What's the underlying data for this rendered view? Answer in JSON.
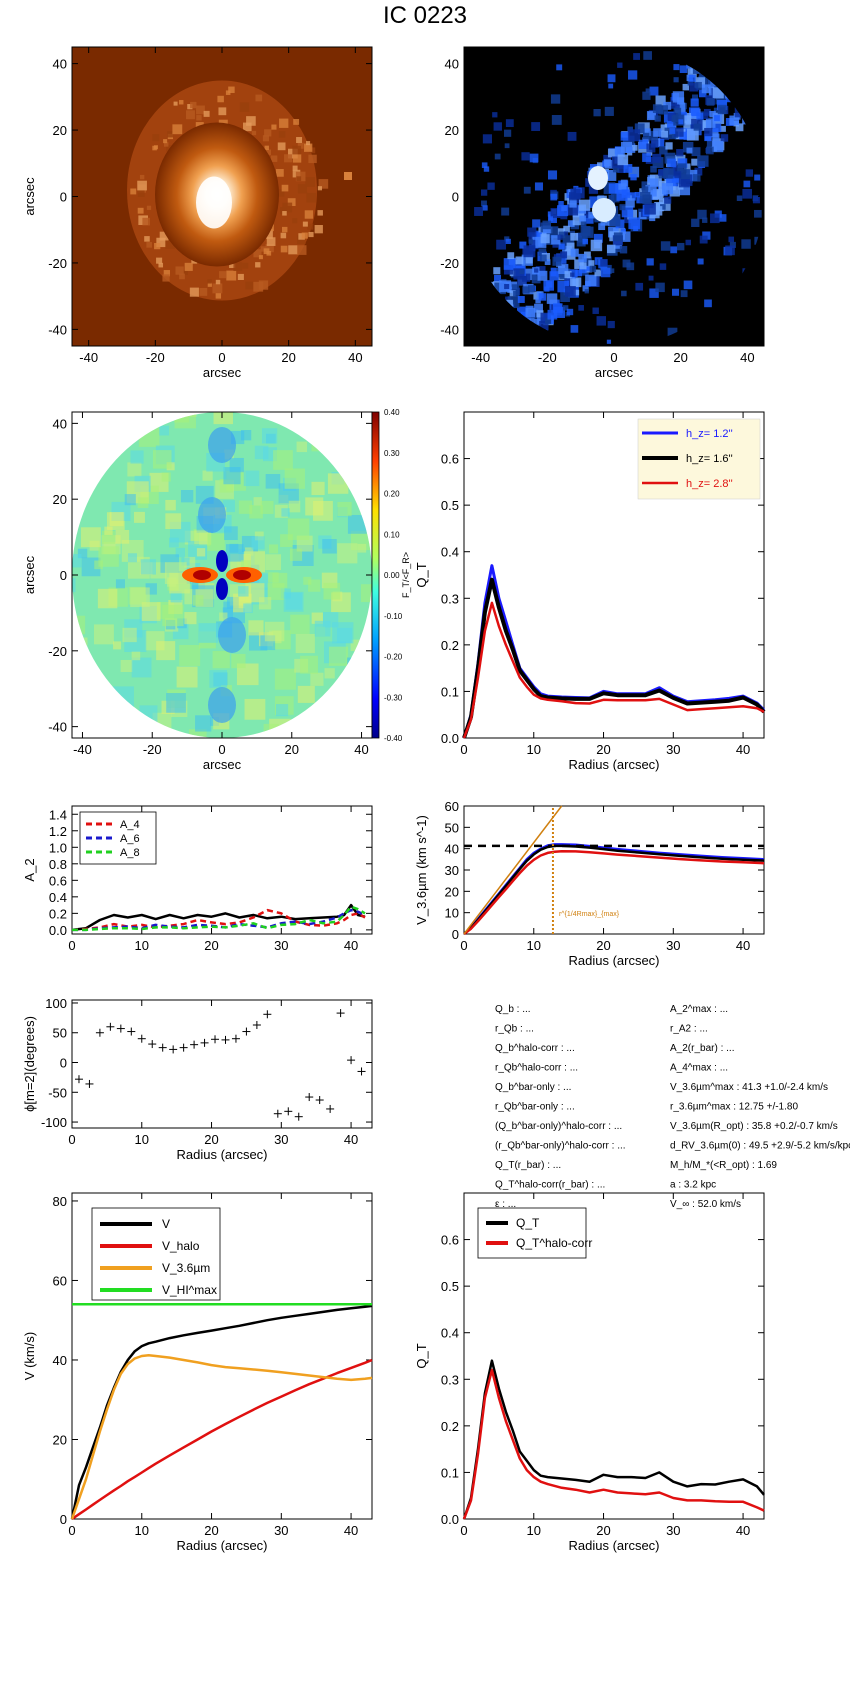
{
  "title": "IC 0223",
  "chart_data": [
    {
      "id": "image-orange",
      "type": "heatmap",
      "xlabel": "arcsec",
      "ylabel": "arcsec",
      "xlim": [
        -45,
        45
      ],
      "ylim": [
        -45,
        45
      ],
      "xticks": [
        "-40",
        "-20",
        "0",
        "20",
        "40"
      ],
      "yticks": [
        "-40",
        "-20",
        "0",
        "20",
        "40"
      ],
      "colormap": [
        "#5a1f00",
        "#ffffff"
      ]
    },
    {
      "id": "image-blue",
      "type": "heatmap",
      "xlabel": "arcsec",
      "ylabel": "",
      "xlim": [
        -45,
        45
      ],
      "ylim": [
        -45,
        45
      ],
      "xticks": [
        "-40",
        "-20",
        "0",
        "20",
        "40"
      ],
      "yticks": [
        "-40",
        "-20",
        "0",
        "20",
        "40"
      ],
      "colormap": [
        "#000000",
        "#1a5cff",
        "#d8ecff"
      ]
    },
    {
      "id": "force-ratio-map",
      "type": "heatmap",
      "xlabel": "arcsec",
      "ylabel": "arcsec",
      "xlim": [
        -43,
        43
      ],
      "ylim": [
        -43,
        43
      ],
      "xticks": [
        "-40",
        "-20",
        "0",
        "20",
        "40"
      ],
      "yticks": [
        "-40",
        "-20",
        "0",
        "20",
        "40"
      ],
      "colorbar_label": "F_T/<F_R>",
      "colorbar_ticks": [
        "0.40",
        "0.30",
        "0.20",
        "0.10",
        "0.00",
        "-0.10",
        "-0.20",
        "-0.30",
        "-0.40"
      ],
      "colorbar_range": [
        -0.4,
        0.4
      ]
    },
    {
      "id": "qt-hz",
      "type": "line",
      "xlabel": "Radius (arcsec)",
      "ylabel": "Q_T",
      "xlim": [
        0,
        43
      ],
      "ylim": [
        0,
        0.7
      ],
      "xticks": [
        "0",
        "10",
        "20",
        "30",
        "40"
      ],
      "yticks": [
        "0.0",
        "0.1",
        "0.2",
        "0.3",
        "0.4",
        "0.5",
        "0.6"
      ],
      "legend_position": "top-right",
      "x": [
        0,
        1,
        2,
        3,
        4,
        5,
        6,
        7,
        8,
        9,
        10,
        11,
        12,
        14,
        16,
        18,
        20,
        22,
        24,
        26,
        28,
        30,
        32,
        34,
        36,
        38,
        40,
        42,
        43
      ],
      "series": [
        {
          "name": "h_z=  1.2''",
          "color": "#1a1aff",
          "width": 3,
          "values": [
            0,
            0.05,
            0.16,
            0.29,
            0.37,
            0.3,
            0.25,
            0.2,
            0.15,
            0.13,
            0.11,
            0.095,
            0.09,
            0.088,
            0.087,
            0.086,
            0.1,
            0.095,
            0.095,
            0.095,
            0.108,
            0.09,
            0.078,
            0.08,
            0.082,
            0.085,
            0.09,
            0.075,
            0.06
          ]
        },
        {
          "name": "h_z=  1.6''",
          "color": "#000000",
          "width": 4,
          "values": [
            0,
            0.045,
            0.15,
            0.27,
            0.34,
            0.28,
            0.23,
            0.19,
            0.145,
            0.125,
            0.105,
            0.09,
            0.087,
            0.085,
            0.084,
            0.084,
            0.096,
            0.092,
            0.092,
            0.092,
            0.102,
            0.086,
            0.074,
            0.076,
            0.078,
            0.08,
            0.087,
            0.072,
            0.056
          ]
        },
        {
          "name": "h_z=  2.8''",
          "color": "#e01010",
          "width": 2.5,
          "values": [
            0,
            0.04,
            0.13,
            0.23,
            0.29,
            0.24,
            0.2,
            0.165,
            0.13,
            0.11,
            0.093,
            0.085,
            0.082,
            0.079,
            0.075,
            0.074,
            0.082,
            0.081,
            0.081,
            0.081,
            0.084,
            0.072,
            0.06,
            0.062,
            0.064,
            0.066,
            0.068,
            0.064,
            0.056
          ]
        }
      ]
    },
    {
      "id": "fourier-amplitudes",
      "type": "line",
      "xlabel": "",
      "ylabel": "A_2",
      "xlim": [
        0,
        43
      ],
      "ylim": [
        -0.05,
        1.5
      ],
      "xticks": [
        "0",
        "10",
        "20",
        "30",
        "40"
      ],
      "yticks": [
        "0.0",
        "0.2",
        "0.4",
        "0.6",
        "0.8",
        "1.0",
        "1.2",
        "1.4"
      ],
      "legend_position": "top-left",
      "x": [
        0,
        2,
        4,
        6,
        8,
        10,
        12,
        14,
        16,
        18,
        20,
        22,
        24,
        26,
        28,
        30,
        32,
        34,
        36,
        38,
        39,
        40,
        41,
        42
      ],
      "series": [
        {
          "name": "A_2",
          "color": "#000000",
          "dash": "",
          "values": [
            0,
            0.02,
            0.12,
            0.18,
            0.15,
            0.18,
            0.13,
            0.18,
            0.14,
            0.18,
            0.16,
            0.2,
            0.15,
            0.18,
            0.14,
            0.16,
            0.13,
            0.14,
            0.15,
            0.16,
            0.18,
            0.3,
            0.18,
            0.16
          ]
        },
        {
          "name": "A_4",
          "color": "#e01010",
          "dash": "6,4",
          "values": [
            0,
            0.01,
            0.03,
            0.07,
            0.04,
            0.06,
            0.03,
            0.05,
            0.07,
            0.12,
            0.09,
            0.07,
            0.09,
            0.15,
            0.24,
            0.2,
            0.1,
            0.06,
            0.05,
            0.08,
            0.12,
            0.18,
            0.2,
            0.15
          ]
        },
        {
          "name": "A_6",
          "color": "#1a1acc",
          "dash": "6,4",
          "values": [
            0,
            0.0,
            0.02,
            0.03,
            0.04,
            0.02,
            0.06,
            0.04,
            0.03,
            0.06,
            0.05,
            0.03,
            0.07,
            0.05,
            0.03,
            0.08,
            0.1,
            0.07,
            0.1,
            0.15,
            0.2,
            0.24,
            0.22,
            0.18
          ]
        },
        {
          "name": "A_8",
          "color": "#20d020",
          "dash": "6,4",
          "values": [
            0,
            0.0,
            0.01,
            0.02,
            0.02,
            0.01,
            0.03,
            0.03,
            0.02,
            0.03,
            0.04,
            0.03,
            0.05,
            0.08,
            0.02,
            0.06,
            0.07,
            0.12,
            0.08,
            0.1,
            0.18,
            0.28,
            0.25,
            0.2
          ]
        }
      ]
    },
    {
      "id": "rotation-curve-3p6",
      "type": "line",
      "xlabel": "Radius (arcsec)",
      "ylabel": "V_3.6µm (km s^-1)",
      "xlim": [
        0,
        43
      ],
      "ylim": [
        0,
        60
      ],
      "xticks": [
        "0",
        "10",
        "20",
        "30",
        "40"
      ],
      "yticks": [
        "0",
        "10",
        "20",
        "30",
        "40",
        "50",
        "60"
      ],
      "vmax": 41.3,
      "r_vmax": 12.75,
      "r_annotation": "r^{1/4Rmax}_{max}",
      "x": [
        0,
        1,
        2,
        3,
        4,
        5,
        6,
        7,
        8,
        9,
        10,
        11,
        12,
        13,
        14,
        16,
        18,
        20,
        22,
        25,
        28,
        31,
        34,
        37,
        40,
        43
      ],
      "series": [
        {
          "name": "",
          "color": "#1a1aff",
          "values": [
            0,
            3,
            7,
            11,
            15,
            19,
            23,
            27,
            31,
            35,
            38,
            40,
            41.5,
            42,
            42,
            41.8,
            41.2,
            40.5,
            39.8,
            38.9,
            38,
            37.3,
            36.6,
            36,
            35.5,
            35
          ]
        },
        {
          "name": "",
          "color": "#000000",
          "values": [
            0,
            2.8,
            6.6,
            10.5,
            14.5,
            18.5,
            22.5,
            26.5,
            30.5,
            34.3,
            37.3,
            39.5,
            40.8,
            41.3,
            41.3,
            41,
            40.5,
            39.8,
            39,
            38.2,
            37.4,
            36.6,
            35.9,
            35.3,
            34.8,
            34.4
          ]
        },
        {
          "name": "",
          "color": "#e01010",
          "values": [
            0,
            2.5,
            6,
            9.7,
            13.5,
            17.3,
            21,
            24.8,
            28.6,
            32,
            34.8,
            36.8,
            38,
            38.6,
            38.8,
            38.7,
            38.3,
            37.8,
            37.2,
            36.5,
            35.8,
            35.1,
            34.5,
            34,
            33.6,
            33.2
          ]
        }
      ]
    },
    {
      "id": "phase-m2",
      "type": "scatter",
      "xlabel": "Radius (arcsec)",
      "ylabel": "ϕ[m=2](degrees)",
      "xlim": [
        0,
        43
      ],
      "ylim": [
        -110,
        105
      ],
      "xticks": [
        "0",
        "10",
        "20",
        "30",
        "40"
      ],
      "yticks": [
        "-100",
        "-50",
        "0",
        "50",
        "100"
      ],
      "x": [
        1,
        2.5,
        4,
        5.5,
        7,
        8.5,
        10,
        11.5,
        13,
        14.5,
        16,
        17.5,
        19,
        20.5,
        22,
        23.5,
        25,
        26.5,
        28,
        29.5,
        31,
        32.5,
        34,
        35.5,
        37,
        38.5,
        40,
        41.5
      ],
      "y": [
        -28,
        -36,
        50,
        60,
        57,
        52,
        40,
        31,
        25,
        22,
        25,
        30,
        33,
        39,
        38,
        40,
        52,
        63,
        81,
        -86,
        -82,
        -91,
        -58,
        -63,
        -78,
        83,
        4,
        -15
      ]
    },
    {
      "id": "rotation-decomposition",
      "type": "line",
      "xlabel": "Radius (arcsec)",
      "ylabel": "V (km/s)",
      "xlim": [
        0,
        43
      ],
      "ylim": [
        0,
        82
      ],
      "xticks": [
        "0",
        "10",
        "20",
        "30",
        "40"
      ],
      "yticks": [
        "0",
        "20",
        "40",
        "60",
        "80"
      ],
      "legend_position": "top-left",
      "x": [
        0,
        1,
        2,
        3,
        4,
        5,
        6,
        7,
        8,
        9,
        10,
        11,
        12,
        14,
        16,
        18,
        20,
        22,
        24,
        26,
        28,
        30,
        32,
        34,
        36,
        38,
        40,
        42,
        43
      ],
      "series": [
        {
          "name": "V",
          "color": "#000000",
          "values": [
            0,
            8.5,
            13,
            18,
            23,
            28.5,
            33,
            37,
            40,
            42.2,
            43.5,
            44.2,
            44.6,
            45.5,
            46.2,
            46.8,
            47.4,
            48,
            48.6,
            49.3,
            50,
            50.6,
            51.1,
            51.6,
            52.1,
            52.6,
            53,
            53.4,
            53.6
          ]
        },
        {
          "name": "V_halo",
          "color": "#e01010",
          "values": [
            0,
            1.2,
            2.4,
            3.6,
            4.8,
            6,
            7.2,
            8.3,
            9.5,
            10.6,
            11.7,
            12.8,
            13.9,
            16,
            18,
            20,
            22,
            23.9,
            25.7,
            27.5,
            29.2,
            30.8,
            32.4,
            33.9,
            35.3,
            36.7,
            38,
            39.3,
            40
          ]
        },
        {
          "name": "V_3.6µm",
          "color": "#f0a020",
          "values": [
            0,
            5,
            10,
            16,
            22,
            27.5,
            32.5,
            36.5,
            39,
            40.4,
            41,
            41.2,
            41,
            40.6,
            40,
            39.4,
            38.7,
            38.2,
            37.9,
            37.6,
            37.3,
            36.9,
            36.5,
            36.1,
            35.7,
            35.3,
            35,
            35.3,
            35.5
          ]
        },
        {
          "name": "V_HI^max",
          "color": "#22dd22",
          "values": [
            54,
            54,
            54,
            54,
            54,
            54,
            54,
            54,
            54,
            54,
            54,
            54,
            54,
            54,
            54,
            54,
            54,
            54,
            54,
            54,
            54,
            54,
            54,
            54,
            54,
            54,
            54,
            54,
            54
          ]
        }
      ]
    },
    {
      "id": "qt-halo-corr",
      "type": "line",
      "xlabel": "Radius (arcsec)",
      "ylabel": "Q_T",
      "xlim": [
        0,
        43
      ],
      "ylim": [
        0,
        0.7
      ],
      "xticks": [
        "0",
        "10",
        "20",
        "30",
        "40"
      ],
      "yticks": [
        "0.0",
        "0.1",
        "0.2",
        "0.3",
        "0.4",
        "0.5",
        "0.6"
      ],
      "legend_position": "top-left",
      "x": [
        0,
        1,
        2,
        3,
        4,
        5,
        6,
        7,
        8,
        9,
        10,
        11,
        12,
        14,
        16,
        18,
        20,
        22,
        24,
        26,
        28,
        30,
        32,
        34,
        36,
        38,
        40,
        42,
        43
      ],
      "series": [
        {
          "name": "Q_T",
          "color": "#000000",
          "values": [
            0,
            0.045,
            0.15,
            0.27,
            0.34,
            0.28,
            0.23,
            0.19,
            0.145,
            0.125,
            0.105,
            0.093,
            0.09,
            0.087,
            0.084,
            0.08,
            0.095,
            0.09,
            0.09,
            0.088,
            0.1,
            0.08,
            0.07,
            0.075,
            0.074,
            0.08,
            0.085,
            0.07,
            0.052
          ]
        },
        {
          "name": "Q_T^halo-corr",
          "color": "#e01010",
          "values": [
            0,
            0.04,
            0.14,
            0.26,
            0.32,
            0.26,
            0.21,
            0.17,
            0.13,
            0.105,
            0.09,
            0.08,
            0.075,
            0.067,
            0.063,
            0.057,
            0.063,
            0.057,
            0.055,
            0.053,
            0.057,
            0.045,
            0.04,
            0.04,
            0.038,
            0.037,
            0.037,
            0.025,
            0.018
          ]
        }
      ]
    }
  ],
  "stats": {
    "left": [
      {
        "label": "Q_b",
        "sup": "",
        "sub": "b",
        "value": ": ..."
      },
      {
        "label": "r_Qb",
        "sup": "",
        "sub": "Qb",
        "value": ": ..."
      },
      {
        "label": "Q_b^halo-corr",
        "sup": "halo-corr",
        "sub": "b",
        "value": ": ..."
      },
      {
        "label": "r_Qb^halo-corr",
        "sup": "halo-corr",
        "sub": "Qb",
        "value": ": ..."
      },
      {
        "label": "Q_b^bar-only",
        "sup": "bar-only",
        "sub": "b",
        "value": ": ..."
      },
      {
        "label": "r_Qb^bar-only",
        "sup": "bar-only",
        "sub": "Qb",
        "value": ": ..."
      },
      {
        "label": "(Q_b^bar-only)^halo-corr",
        "sup": "",
        "sub": "",
        "value": ": ..."
      },
      {
        "label": "(r_Qb^bar-only)^halo-corr",
        "sup": "",
        "sub": "",
        "value": ": ..."
      },
      {
        "label": "Q_T(r_bar)",
        "sup": "",
        "sub": "",
        "value": ": ..."
      },
      {
        "label": "Q_T^halo-corr(r_bar)",
        "sup": "",
        "sub": "",
        "value": ": ..."
      },
      {
        "label": "ε",
        "sup": "",
        "sub": "",
        "value": ": ..."
      }
    ],
    "right": [
      {
        "label": "A_2^max",
        "value": ": ..."
      },
      {
        "label": "r_A2",
        "value": ": ..."
      },
      {
        "label": "A_2(r_bar)",
        "value": ": ..."
      },
      {
        "label": "A_4^max",
        "value": ": ..."
      },
      {
        "label": "V_3.6µm^max",
        "value": ":  41.3 +1.0/-2.4 km/s"
      },
      {
        "label": "r_3.6µm^max",
        "value": ":  12.75 +/-1.80"
      },
      {
        "label": "V_3.6µm(R_opt)",
        "value": ":  35.8 +0.2/-0.7 km/s"
      },
      {
        "label": "d_RV_3.6µm(0)",
        "value": ":  49.5 +2.9/-5.2 km/s/kpc"
      },
      {
        "label": "M_h/M_*(<R_opt)",
        "value": ":  1.69"
      },
      {
        "label": "a",
        "value": ":  3.2 kpc"
      },
      {
        "label": "V_∞",
        "value": ":  52.0 km/s"
      }
    ]
  }
}
